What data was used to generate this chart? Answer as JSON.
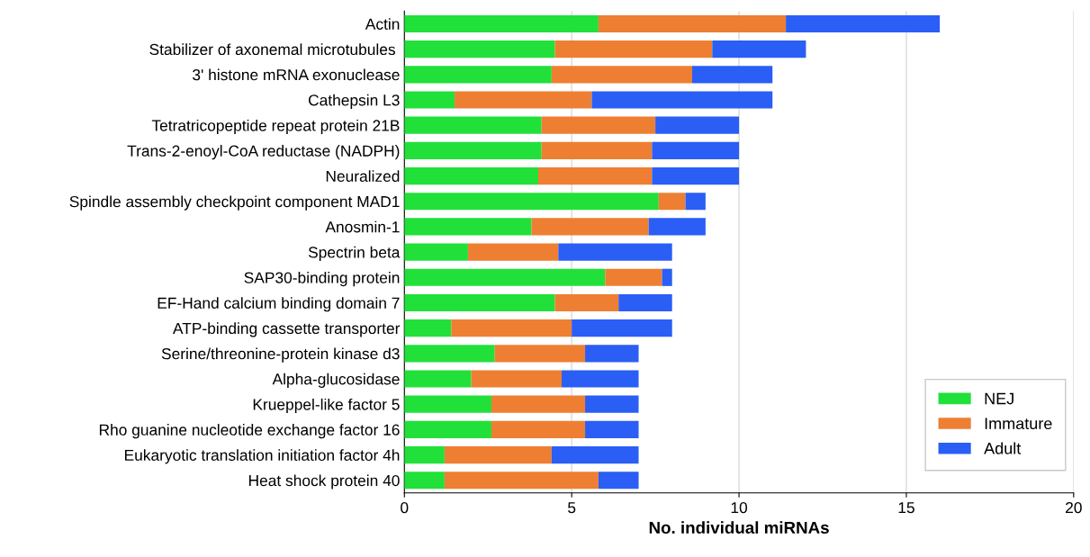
{
  "chart_data": {
    "type": "bar",
    "orientation": "horizontal",
    "stacked": true,
    "categories": [
      "Actin",
      "Stabilizer of axonemal microtubules ",
      "3' histone mRNA exonuclease",
      "Cathepsin L3",
      "Tetratricopeptide repeat protein 21B",
      "Trans-2-enoyl-CoA reductase (NADPH)",
      "Neuralized",
      "Spindle assembly checkpoint component MAD1",
      "Anosmin-1",
      "Spectrin beta",
      "SAP30-binding protein",
      "EF-Hand calcium binding domain 7",
      "ATP-binding cassette transporter",
      "Serine/threonine-protein kinase d3",
      "Alpha-glucosidase",
      "Krueppel-like factor 5",
      "Rho guanine nucleotide exchange factor 16",
      "Eukaryotic translation initiation factor 4h",
      "Heat shock protein 40"
    ],
    "series": [
      {
        "name": "NEJ",
        "color": "#22e03a",
        "values": [
          5.8,
          4.5,
          4.4,
          1.5,
          4.1,
          4.1,
          4.0,
          7.6,
          3.8,
          1.9,
          6.0,
          4.5,
          1.4,
          2.7,
          2.0,
          2.6,
          2.6,
          1.2,
          1.2
        ]
      },
      {
        "name": "Immature",
        "color": "#ee7f32",
        "values": [
          5.6,
          4.7,
          4.2,
          4.1,
          3.4,
          3.3,
          3.4,
          0.8,
          3.5,
          2.7,
          1.7,
          1.9,
          3.6,
          2.7,
          2.7,
          2.8,
          2.8,
          3.2,
          4.6
        ]
      },
      {
        "name": "Adult",
        "color": "#2a5ef5",
        "values": [
          4.6,
          2.8,
          2.4,
          5.4,
          2.5,
          2.6,
          2.6,
          0.6,
          1.7,
          3.4,
          0.3,
          1.6,
          3.0,
          1.6,
          2.3,
          1.6,
          1.6,
          2.6,
          1.2
        ]
      }
    ],
    "xlabel": "No. individual miRNAs",
    "xlim": [
      0,
      20
    ],
    "xticks": [
      0,
      5,
      10,
      15,
      20
    ],
    "grid": "x",
    "legend": "bottom right"
  }
}
